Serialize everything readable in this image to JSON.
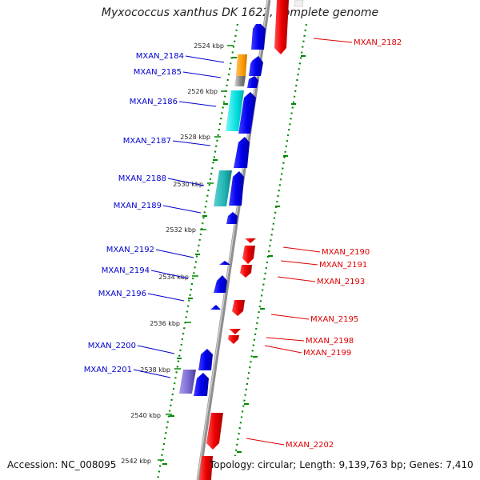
{
  "title": "Myxococcus xanthus DK 1622, complete genome",
  "accession": "Accession: NC_008095",
  "summary": "Topology: circular; Length: 9,139,763 bp; Genes: 7,410",
  "kbp_marks": [
    {
      "label": "2524 kbp",
      "pos": 2524
    },
    {
      "label": "2526 kbp",
      "pos": 2526
    },
    {
      "label": "2528 kbp",
      "pos": 2528
    },
    {
      "label": "2530 kbp",
      "pos": 2530
    },
    {
      "label": "2532 kbp",
      "pos": 2532
    },
    {
      "label": "2534 kbp",
      "pos": 2534
    },
    {
      "label": "2536 kbp",
      "pos": 2536
    },
    {
      "label": "2538 kbp",
      "pos": 2538
    },
    {
      "label": "2540 kbp",
      "pos": 2540
    },
    {
      "label": "2542 kbp",
      "pos": 2542
    }
  ],
  "colors": {
    "forward": "#0000ee",
    "reverse": "#ee0000",
    "backbone": "#9a9a9a",
    "dots": "#008800",
    "orange": "#ff9900",
    "gray": "#808080",
    "cyan": "#00e6e6",
    "teal": "#1fb3b3",
    "purple": "#7766cc"
  },
  "genes_left": [
    {
      "name": "MXAN_2184"
    },
    {
      "name": "MXAN_2185"
    },
    {
      "name": "MXAN_2186"
    },
    {
      "name": "MXAN_2187"
    },
    {
      "name": "MXAN_2188"
    },
    {
      "name": "MXAN_2189"
    },
    {
      "name": "MXAN_2192"
    },
    {
      "name": "MXAN_2194"
    },
    {
      "name": "MXAN_2196"
    },
    {
      "name": "MXAN_2200"
    },
    {
      "name": "MXAN_2201"
    }
  ],
  "genes_right": [
    {
      "name": "MXAN_2182"
    },
    {
      "name": "MXAN_2190"
    },
    {
      "name": "MXAN_2191"
    },
    {
      "name": "MXAN_2193"
    },
    {
      "name": "MXAN_2195"
    },
    {
      "name": "MXAN_2198"
    },
    {
      "name": "MXAN_2199"
    },
    {
      "name": "MXAN_2202"
    }
  ]
}
